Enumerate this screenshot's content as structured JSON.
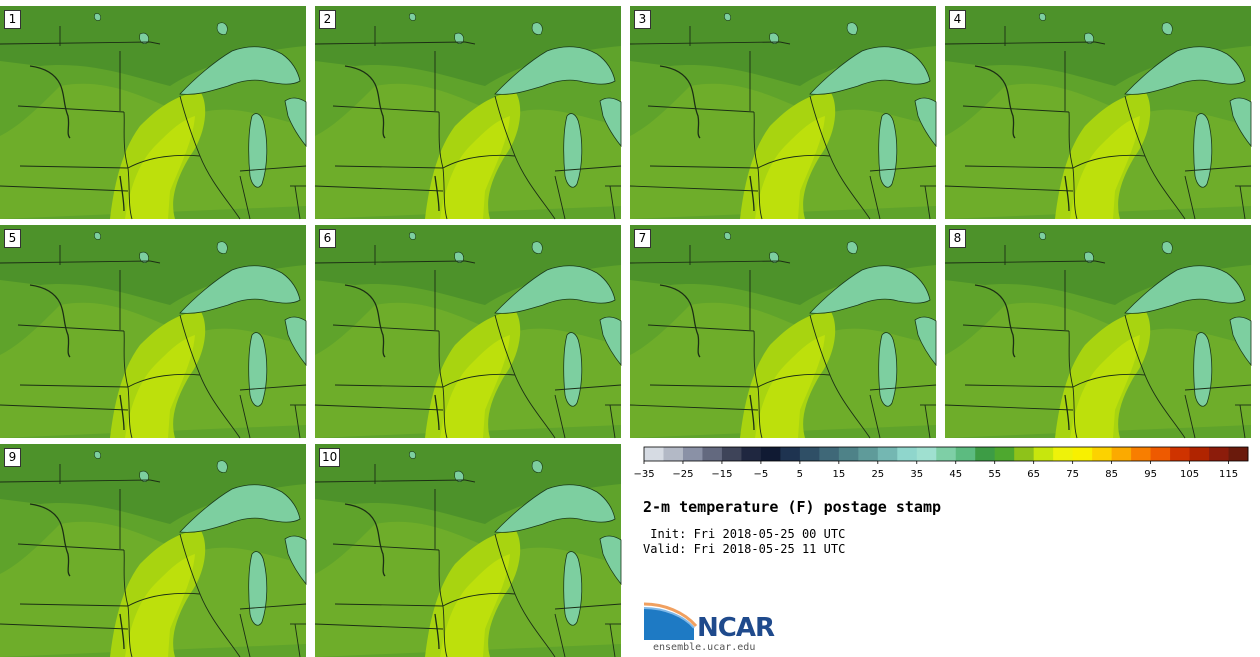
{
  "panels": [
    {
      "label": "1"
    },
    {
      "label": "2"
    },
    {
      "label": "3"
    },
    {
      "label": "4"
    },
    {
      "label": "5"
    },
    {
      "label": "6"
    },
    {
      "label": "7"
    },
    {
      "label": "8"
    },
    {
      "label": "9"
    },
    {
      "label": "10"
    }
  ],
  "colorbar": {
    "colors": [
      "#d6dbe3",
      "#b3b9c6",
      "#8a91a6",
      "#63697f",
      "#3e4459",
      "#1f2740",
      "#101a33",
      "#1e3350",
      "#2f4f66",
      "#3f6878",
      "#4e8288",
      "#5f9b9a",
      "#74b7b2",
      "#8fd6cc",
      "#9fe0d0",
      "#7ecfa6",
      "#5cbb80",
      "#3d9c45",
      "#4ea82f",
      "#8ec21a",
      "#c7e60d",
      "#eef20a",
      "#f8f000",
      "#fcd200",
      "#fbaa00",
      "#f87e00",
      "#ee5a00",
      "#cf3300",
      "#b02400",
      "#8c1c0b",
      "#6a1a0c"
    ],
    "min": -35,
    "step": 5,
    "tick_labels": [
      "−35",
      "−25",
      "−15",
      "−5",
      "5",
      "15",
      "25",
      "35",
      "45",
      "55",
      "65",
      "75",
      "85",
      "95",
      "105",
      "115"
    ]
  },
  "title": "2-m temperature (F) postage stamp",
  "init_line": " Init: Fri 2018-05-25 00 UTC",
  "valid_line": "Valid: Fri 2018-05-25 11 UTC",
  "logo": {
    "name": "NCAR",
    "url_text": "ensemble.ucar.edu"
  }
}
